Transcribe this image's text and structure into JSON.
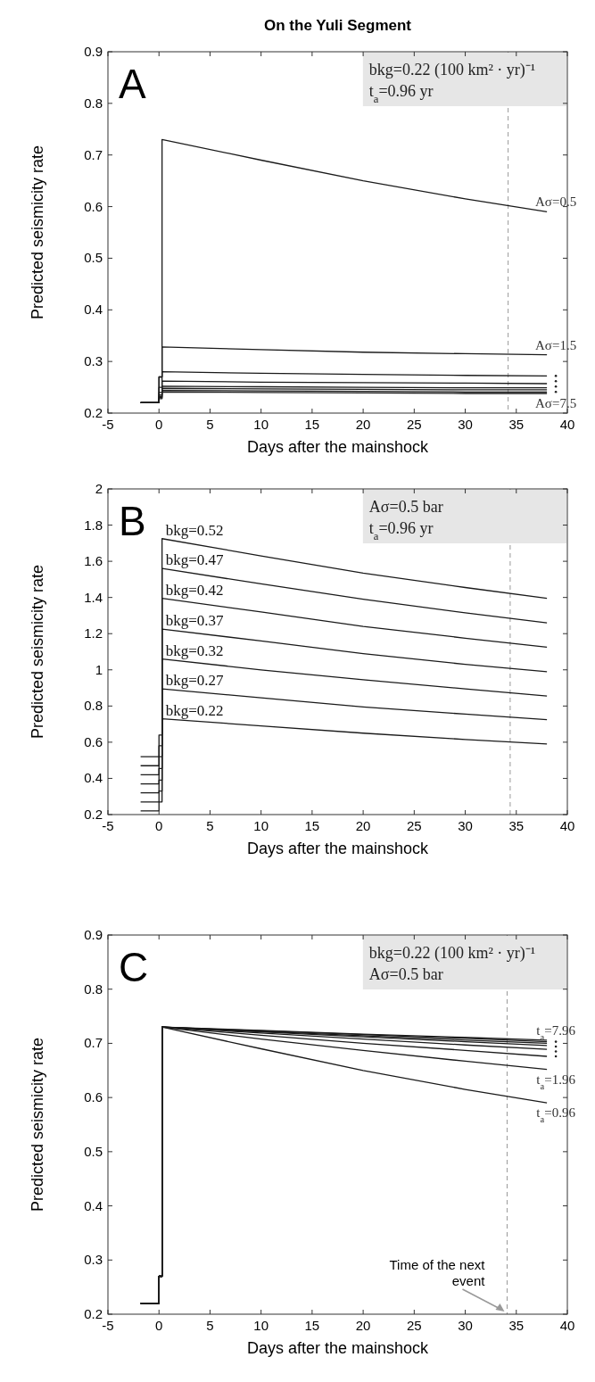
{
  "chart_data": [
    {
      "type": "line",
      "title": "On the Yuli Segment",
      "xlabel": "Days after the mainshock",
      "ylabel": "Predicted seismicity rate",
      "x": [
        -1.8,
        0,
        0,
        0.3,
        0.3,
        10,
        20,
        30,
        38
      ],
      "series": [
        {
          "name": "Aσ=0.5",
          "color": "#1a1a1a",
          "values": [
            0.22,
            0.22,
            0.27,
            0.27,
            0.73,
            0.69,
            0.65,
            0.615,
            0.59
          ]
        },
        {
          "name": "Aσ=1.5",
          "color": "#1a1a1a",
          "values": [
            0.22,
            0.22,
            0.27,
            0.27,
            0.328,
            0.323,
            0.318,
            0.315,
            0.313
          ]
        },
        {
          "color": "#1a1a1a",
          "values": [
            0.22,
            0.22,
            0.25,
            0.25,
            0.28,
            0.277,
            0.275,
            0.273,
            0.272
          ]
        },
        {
          "color": "#1a1a1a",
          "values": [
            0.22,
            0.22,
            0.24,
            0.24,
            0.262,
            0.26,
            0.259,
            0.258,
            0.257
          ]
        },
        {
          "color": "#1a1a1a",
          "values": [
            0.22,
            0.22,
            0.235,
            0.235,
            0.252,
            0.251,
            0.25,
            0.249,
            0.249
          ]
        },
        {
          "color": "#1a1a1a",
          "values": [
            0.22,
            0.22,
            0.232,
            0.232,
            0.248,
            0.247,
            0.246,
            0.245,
            0.245
          ]
        },
        {
          "color": "#1a1a1a",
          "values": [
            0.22,
            0.22,
            0.23,
            0.23,
            0.244,
            0.243,
            0.242,
            0.241,
            0.241
          ]
        },
        {
          "name": "Aσ=7.5",
          "color": "#1a1a1a",
          "values": [
            0.22,
            0.22,
            0.228,
            0.228,
            0.241,
            0.24,
            0.239,
            0.238,
            0.238
          ]
        }
      ],
      "xlim": [
        -5,
        40
      ],
      "xticks": [
        -5,
        0,
        5,
        10,
        15,
        20,
        25,
        30,
        35,
        40
      ],
      "ylim": [
        0.2,
        0.9
      ],
      "yticks": [
        0.2,
        0.3,
        0.4,
        0.5,
        0.6,
        0.7,
        0.8,
        0.9
      ],
      "ref_lines": [
        {
          "axis": "x",
          "value": 34.2,
          "color": "#999999",
          "line_style": "dashed"
        }
      ],
      "annotations": [
        "A",
        "bkg=0.22 (100 km² · yr)⁻¹",
        "t$_{a}$=0.96 yr"
      ]
    },
    {
      "type": "line",
      "xlabel": "Days after the mainshock",
      "ylabel": "Predicted seismicity rate",
      "x": [
        -1.8,
        0,
        0,
        0.3,
        0.3,
        10,
        20,
        30,
        38
      ],
      "series": [
        {
          "name": "bkg=0.52",
          "color": "#1a1a1a",
          "values": [
            0.52,
            0.52,
            0.64,
            0.64,
            1.725,
            1.63,
            1.535,
            1.455,
            1.395
          ]
        },
        {
          "name": "bkg=0.47",
          "color": "#1a1a1a",
          "values": [
            0.47,
            0.47,
            0.58,
            0.58,
            1.56,
            1.475,
            1.39,
            1.315,
            1.26
          ]
        },
        {
          "name": "bkg=0.42",
          "color": "#1a1a1a",
          "values": [
            0.42,
            0.42,
            0.52,
            0.52,
            1.395,
            1.32,
            1.24,
            1.175,
            1.125
          ]
        },
        {
          "name": "bkg=0.37",
          "color": "#1a1a1a",
          "values": [
            0.37,
            0.37,
            0.455,
            0.455,
            1.225,
            1.16,
            1.09,
            1.03,
            0.99
          ]
        },
        {
          "name": "bkg=0.32",
          "color": "#1a1a1a",
          "values": [
            0.32,
            0.32,
            0.39,
            0.39,
            1.06,
            1.0,
            0.945,
            0.895,
            0.855
          ]
        },
        {
          "name": "bkg=0.27",
          "color": "#1a1a1a",
          "values": [
            0.27,
            0.27,
            0.33,
            0.33,
            0.895,
            0.845,
            0.795,
            0.755,
            0.725
          ]
        },
        {
          "name": "bkg=0.22",
          "color": "#1a1a1a",
          "values": [
            0.22,
            0.22,
            0.27,
            0.27,
            0.73,
            0.69,
            0.65,
            0.615,
            0.59
          ]
        }
      ],
      "xlim": [
        -5,
        40
      ],
      "xticks": [
        -5,
        0,
        5,
        10,
        15,
        20,
        25,
        30,
        35,
        40
      ],
      "ylim": [
        0.2,
        2
      ],
      "yticks": [
        0.2,
        0.4,
        0.6,
        0.8,
        1,
        1.2,
        1.4,
        1.6,
        1.8,
        2
      ],
      "ref_lines": [
        {
          "axis": "x",
          "value": 34.4,
          "color": "#999999",
          "line_style": "dashed"
        }
      ],
      "annotations": [
        "B",
        "Aσ=0.5 bar",
        "t$_{a}$=0.96 yr"
      ]
    },
    {
      "type": "line",
      "xlabel": "Days after the mainshock",
      "ylabel": "Predicted seismicity rate",
      "x": [
        -1.8,
        0,
        0,
        0.3,
        0.3,
        10,
        20,
        30,
        38
      ],
      "series": [
        {
          "name": "t$_{a}$=7.96",
          "color": "#1a1a1a",
          "values": [
            0.22,
            0.22,
            0.27,
            0.27,
            0.73,
            0.724,
            0.717,
            0.711,
            0.706
          ]
        },
        {
          "color": "#1a1a1a",
          "values": [
            0.22,
            0.22,
            0.27,
            0.27,
            0.73,
            0.723,
            0.716,
            0.709,
            0.703
          ]
        },
        {
          "color": "#1a1a1a",
          "values": [
            0.22,
            0.22,
            0.27,
            0.27,
            0.73,
            0.722,
            0.714,
            0.706,
            0.7
          ]
        },
        {
          "color": "#1a1a1a",
          "values": [
            0.22,
            0.22,
            0.27,
            0.27,
            0.73,
            0.721,
            0.712,
            0.703,
            0.696
          ]
        },
        {
          "color": "#1a1a1a",
          "values": [
            0.22,
            0.22,
            0.27,
            0.27,
            0.73,
            0.719,
            0.708,
            0.697,
            0.689
          ]
        },
        {
          "color": "#1a1a1a",
          "values": [
            0.22,
            0.22,
            0.27,
            0.27,
            0.73,
            0.715,
            0.7,
            0.687,
            0.676
          ]
        },
        {
          "name": "t$_{a}$=1.96",
          "color": "#1a1a1a",
          "values": [
            0.22,
            0.22,
            0.27,
            0.27,
            0.73,
            0.708,
            0.687,
            0.667,
            0.652
          ]
        },
        {
          "name": "t$_{a}$=0.96",
          "color": "#1a1a1a",
          "values": [
            0.22,
            0.22,
            0.27,
            0.27,
            0.73,
            0.69,
            0.65,
            0.615,
            0.59
          ]
        }
      ],
      "xlim": [
        -5,
        40
      ],
      "xticks": [
        -5,
        0,
        5,
        10,
        15,
        20,
        25,
        30,
        35,
        40
      ],
      "ylim": [
        0.2,
        0.9
      ],
      "yticks": [
        0.2,
        0.3,
        0.4,
        0.5,
        0.6,
        0.7,
        0.8,
        0.9
      ],
      "ref_lines": [
        {
          "axis": "x",
          "value": 34.1,
          "color": "#999999",
          "line_style": "dashed",
          "label": "Time of the next event"
        }
      ],
      "annotations": [
        "C",
        "bkg=0.22 (100 km² · yr)⁻¹",
        "Aσ=0.5 bar"
      ]
    }
  ]
}
